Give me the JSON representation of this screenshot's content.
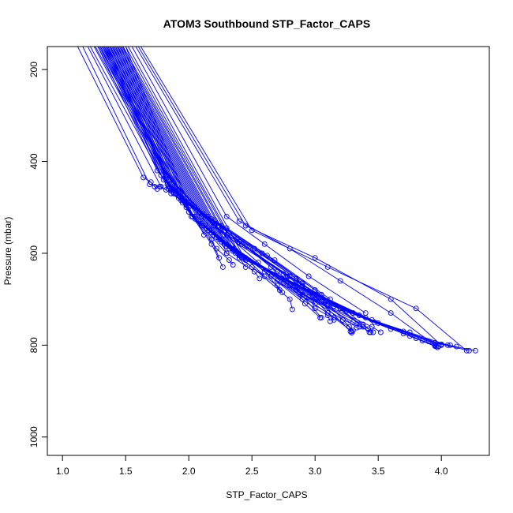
{
  "chart_data": {
    "type": "line",
    "title": "ATOM3 Southbound STP_Factor_CAPS",
    "xlabel": "STP_Factor_CAPS",
    "ylabel": "Pressure (mbar)",
    "xlim": [
      0.88,
      4.38
    ],
    "ylim": [
      1040,
      150
    ],
    "y_inverted": true,
    "grid": false,
    "legend": "none",
    "x_ticks": [
      "1.0",
      "1.5",
      "2.0",
      "2.5",
      "3.0",
      "3.5",
      "4.0"
    ],
    "y_ticks": [
      "200",
      "400",
      "600",
      "800",
      "1000"
    ],
    "x_tick_values": [
      1.0,
      1.5,
      2.0,
      2.5,
      3.0,
      3.5,
      4.0
    ],
    "y_tick_values": [
      200,
      400,
      600,
      800,
      1000
    ],
    "series_color": "#0000ff",
    "marker": "open-circle",
    "series": [
      {
        "x": [
          1.12,
          1.64,
          1.7,
          1.73,
          1.75
        ],
        "y": [
          150,
          435,
          445,
          455,
          460
        ]
      },
      {
        "x": [
          1.16,
          1.69,
          1.77,
          1.82
        ],
        "y": [
          150,
          450,
          455,
          462
        ]
      },
      {
        "x": [
          1.2,
          1.78,
          1.86,
          1.94,
          1.98
        ],
        "y": [
          150,
          455,
          470,
          485,
          495
        ]
      },
      {
        "x": [
          1.22,
          1.84,
          1.95,
          2.0,
          2.02
        ],
        "y": [
          150,
          460,
          480,
          500,
          520
        ]
      },
      {
        "x": [
          1.25,
          1.88,
          2.05,
          2.12
        ],
        "y": [
          150,
          470,
          520,
          560
        ]
      },
      {
        "x": [
          1.26,
          1.92,
          2.1,
          2.18,
          2.24
        ],
        "y": [
          150,
          480,
          540,
          570,
          610
        ]
      },
      {
        "x": [
          1.28,
          1.95,
          2.18,
          2.27
        ],
        "y": [
          150,
          490,
          580,
          630
        ]
      },
      {
        "x": [
          1.29,
          1.98,
          2.22,
          2.32,
          2.35
        ],
        "y": [
          150,
          500,
          590,
          615,
          625
        ]
      },
      {
        "x": [
          1.3,
          2.0,
          2.3,
          2.52,
          2.56
        ],
        "y": [
          150,
          510,
          600,
          640,
          655
        ]
      },
      {
        "x": [
          1.31,
          2.03,
          2.4,
          2.7,
          2.74
        ],
        "y": [
          150,
          520,
          610,
          670,
          685
        ]
      },
      {
        "x": [
          1.32,
          2.05,
          2.5,
          2.8,
          2.82
        ],
        "y": [
          150,
          525,
          630,
          700,
          722
        ]
      },
      {
        "x": [
          1.33,
          2.08,
          2.6,
          2.92,
          3.04
        ],
        "y": [
          150,
          530,
          640,
          710,
          740
        ]
      },
      {
        "x": [
          1.34,
          2.1,
          2.65,
          3.0,
          3.1,
          3.12
        ],
        "y": [
          150,
          535,
          650,
          720,
          735,
          748
        ]
      },
      {
        "x": [
          1.35,
          2.12,
          2.7,
          3.1,
          3.27,
          3.29
        ],
        "y": [
          150,
          540,
          660,
          730,
          760,
          773
        ]
      },
      {
        "x": [
          1.36,
          2.14,
          2.75,
          3.15,
          3.29
        ],
        "y": [
          150,
          545,
          665,
          740,
          770
        ]
      },
      {
        "x": [
          1.37,
          2.16,
          2.8,
          3.22,
          3.35
        ],
        "y": [
          150,
          550,
          670,
          745,
          760
        ]
      },
      {
        "x": [
          1.38,
          2.18,
          2.85,
          3.3,
          3.44
        ],
        "y": [
          150,
          555,
          680,
          750,
          772
        ]
      },
      {
        "x": [
          1.39,
          2.2,
          2.9,
          3.38,
          3.46
        ],
        "y": [
          150,
          560,
          690,
          755,
          772
        ]
      },
      {
        "x": [
          1.4,
          2.22,
          2.95,
          3.45,
          3.52
        ],
        "y": [
          150,
          565,
          695,
          760,
          772
        ]
      },
      {
        "x": [
          1.41,
          2.24,
          3.0,
          3.5
        ],
        "y": [
          150,
          570,
          700,
          752
        ]
      },
      {
        "x": [
          1.42,
          2.26,
          3.05,
          3.6,
          3.7,
          3.75
        ],
        "y": [
          150,
          575,
          705,
          765,
          770,
          772
        ]
      },
      {
        "x": [
          1.43,
          2.28,
          3.1,
          3.7,
          3.95
        ],
        "y": [
          150,
          580,
          710,
          775,
          802
        ]
      },
      {
        "x": [
          1.44,
          2.3,
          3.15,
          3.75,
          3.96
        ],
        "y": [
          150,
          585,
          715,
          780,
          803
        ]
      },
      {
        "x": [
          1.45,
          2.32,
          3.2,
          3.8,
          3.97
        ],
        "y": [
          150,
          590,
          720,
          785,
          805
        ]
      },
      {
        "x": [
          1.46,
          2.35,
          3.25,
          3.85,
          3.98
        ],
        "y": [
          150,
          595,
          725,
          790,
          802
        ]
      },
      {
        "x": [
          1.47,
          2.37,
          3.3,
          3.9,
          4.07
        ],
        "y": [
          150,
          600,
          730,
          792,
          800
        ]
      },
      {
        "x": [
          1.48,
          2.4,
          3.35,
          3.95,
          4.12
        ],
        "y": [
          150,
          605,
          735,
          795,
          803
        ]
      },
      {
        "x": [
          1.5,
          2.42,
          3.4,
          4.0,
          4.22
        ],
        "y": [
          150,
          610,
          740,
          798,
          812
        ]
      },
      {
        "x": [
          1.52,
          2.45,
          3.45,
          4.05,
          4.27
        ],
        "y": [
          150,
          615,
          745,
          800,
          812
        ]
      },
      {
        "x": [
          1.36,
          1.8,
          2.2,
          2.8,
          3.2,
          3.38
        ],
        "y": [
          150,
          420,
          540,
          650,
          720,
          760
        ]
      },
      {
        "x": [
          1.38,
          1.82,
          2.25,
          2.85,
          3.25,
          3.42
        ],
        "y": [
          150,
          430,
          550,
          660,
          725,
          765
        ]
      },
      {
        "x": [
          1.4,
          1.85,
          2.28,
          2.9,
          3.3,
          3.47
        ],
        "y": [
          150,
          440,
          560,
          670,
          730,
          750
        ]
      },
      {
        "x": [
          1.55,
          2.3,
          2.6,
          2.95,
          3.4
        ],
        "y": [
          150,
          520,
          580,
          650,
          730
        ]
      },
      {
        "x": [
          1.58,
          2.4,
          2.8,
          3.2,
          3.6,
          3.95
        ],
        "y": [
          150,
          530,
          590,
          660,
          730,
          800
        ]
      },
      {
        "x": [
          1.6,
          2.45,
          3.0,
          3.6,
          4.0
        ],
        "y": [
          150,
          540,
          610,
          700,
          800
        ]
      },
      {
        "x": [
          1.62,
          2.5,
          3.1,
          3.8,
          4.2
        ],
        "y": [
          150,
          550,
          630,
          720,
          812
        ]
      },
      {
        "x": [
          1.28,
          1.75,
          1.9,
          2.05,
          2.15
        ],
        "y": [
          150,
          420,
          470,
          500,
          520
        ]
      },
      {
        "x": [
          1.3,
          1.78,
          1.95,
          2.1,
          2.25,
          2.3
        ],
        "y": [
          150,
          430,
          480,
          520,
          570,
          600
        ]
      },
      {
        "x": [
          1.32,
          1.8,
          2.0,
          2.2,
          2.35,
          2.45
        ],
        "y": [
          150,
          440,
          490,
          540,
          590,
          630
        ]
      },
      {
        "x": [
          1.34,
          1.83,
          2.05,
          2.25,
          2.45,
          2.6
        ],
        "y": [
          150,
          450,
          500,
          550,
          610,
          650
        ]
      },
      {
        "x": [
          1.36,
          1.86,
          2.08,
          2.3,
          2.55,
          2.72
        ],
        "y": [
          150,
          460,
          510,
          560,
          620,
          680
        ]
      },
      {
        "x": [
          1.38,
          1.88,
          2.12,
          2.38,
          2.65,
          2.9
        ],
        "y": [
          150,
          465,
          515,
          570,
          630,
          700
        ]
      },
      {
        "x": [
          1.4,
          1.9,
          2.15,
          2.42,
          2.75,
          3.05
        ],
        "y": [
          150,
          470,
          520,
          580,
          645,
          740
        ]
      },
      {
        "x": [
          1.42,
          1.92,
          2.18,
          2.48,
          2.85,
          3.15
        ],
        "y": [
          150,
          475,
          525,
          585,
          655,
          745
        ]
      },
      {
        "x": [
          1.44,
          1.94,
          2.2,
          2.52,
          2.9,
          3.28
        ],
        "y": [
          150,
          480,
          530,
          590,
          665,
          770
        ]
      },
      {
        "x": [
          1.46,
          1.96,
          2.22,
          2.58,
          3.0,
          3.3
        ],
        "y": [
          150,
          485,
          535,
          600,
          680,
          768
        ]
      },
      {
        "x": [
          1.48,
          1.98,
          2.26,
          2.62,
          3.05,
          3.43
        ],
        "y": [
          150,
          490,
          540,
          605,
          690,
          772
        ]
      },
      {
        "x": [
          1.5,
          2.0,
          2.3,
          2.68,
          3.12
        ],
        "y": [
          150,
          495,
          545,
          615,
          700
        ]
      },
      {
        "x": [
          1.33,
          1.84,
          2.0,
          2.2,
          2.4,
          2.7,
          3.0
        ],
        "y": [
          150,
          455,
          490,
          530,
          575,
          640,
          710
        ]
      },
      {
        "x": [
          1.35,
          1.86,
          2.04,
          2.24,
          2.46,
          2.78,
          3.1,
          3.33
        ],
        "y": [
          150,
          462,
          498,
          540,
          585,
          650,
          715,
          762
        ]
      }
    ]
  }
}
